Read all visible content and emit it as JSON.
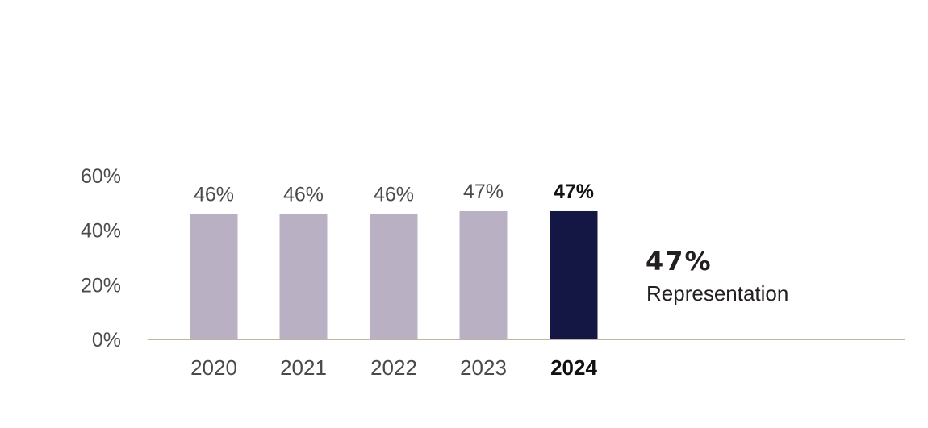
{
  "chart_data": {
    "type": "bar",
    "categories": [
      "2020",
      "2021",
      "2022",
      "2023",
      "2024"
    ],
    "values": [
      46,
      46,
      46,
      47,
      47
    ],
    "data_labels": [
      "46%",
      "46%",
      "46%",
      "47%",
      "47%"
    ],
    "highlight_index": 4,
    "y_ticks": [
      0,
      20,
      40,
      60
    ],
    "y_tick_labels": [
      "0%",
      "20%",
      "40%",
      "60%"
    ],
    "ylim": [
      0,
      60
    ],
    "grid": false,
    "colors": {
      "bar": "#b9b1c3",
      "highlight_bar": "#141643",
      "baseline": "#a89e80"
    },
    "callout": {
      "value": "47%",
      "label": "Representation"
    }
  }
}
